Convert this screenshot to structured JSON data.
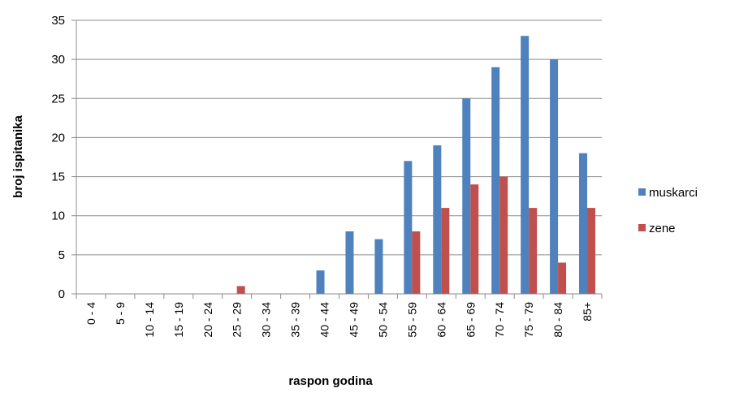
{
  "chart_data": {
    "type": "bar",
    "title": "",
    "xlabel": "raspon godina",
    "ylabel": "broj ispitanika",
    "ylim": [
      0,
      35
    ],
    "yticks": [
      0,
      5,
      10,
      15,
      20,
      25,
      30,
      35
    ],
    "grid": "horizontal",
    "legend_position": "right",
    "categories": [
      "0 - 4",
      "5 - 9",
      "10 - 14",
      "15 - 19",
      "20 - 24",
      "25 - 29",
      "30 - 34",
      "35 - 39",
      "40 - 44",
      "45 - 49",
      "50 - 54",
      "55 - 59",
      "60 - 64",
      "65 - 69",
      "70 - 74",
      "75 - 79",
      "80 - 84",
      "85+"
    ],
    "series": [
      {
        "name": "muskarci",
        "color": "#4F81BD",
        "values": [
          0,
          0,
          0,
          0,
          0,
          0,
          0,
          0,
          3,
          8,
          7,
          17,
          19,
          25,
          29,
          33,
          30,
          18
        ]
      },
      {
        "name": "zene",
        "color": "#C0504D",
        "values": [
          0,
          0,
          0,
          0,
          0,
          1,
          0,
          0,
          0,
          0,
          0,
          8,
          11,
          14,
          15,
          11,
          4,
          11
        ]
      }
    ]
  }
}
